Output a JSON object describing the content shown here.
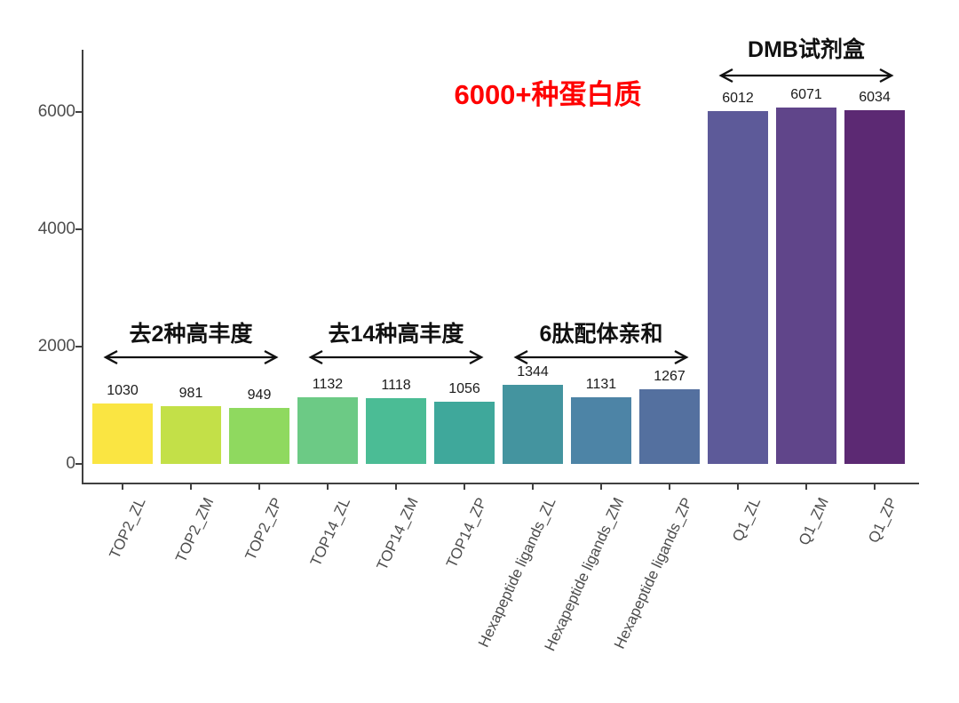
{
  "figure": {
    "background": "#ffffff",
    "highlight_note": {
      "text": "6000+种蛋白质",
      "color": "#FF0000"
    },
    "axis": {
      "line_color": "#404040",
      "tick_label_color": "#4d4d4d"
    }
  },
  "chart_data": {
    "type": "bar",
    "title": "",
    "xlabel": "",
    "ylabel": "",
    "categories": [
      "TOP2_ZL",
      "TOP2_ZM",
      "TOP2_ZP",
      "TOP14_ZL",
      "TOP14_ZM",
      "TOP14_ZP",
      "Hexapeptide ligands_ZL",
      "Hexapeptide ligands_ZM",
      "Hexapeptide ligands_ZP",
      "Q1_ZL",
      "Q1_ZM",
      "Q1_ZP"
    ],
    "values": [
      1030,
      981,
      949,
      1132,
      1118,
      1056,
      1344,
      1131,
      1267,
      6012,
      6071,
      6034
    ],
    "bar_colors": [
      "#FAE542",
      "#C3E048",
      "#8FD95F",
      "#6CCA85",
      "#4BBC95",
      "#3FA89B",
      "#44949F",
      "#4D84A6",
      "#54709F",
      "#5D5A99",
      "#60458A",
      "#5C2973"
    ],
    "value_label_color": "#1b1b1b",
    "yticks": [
      0,
      2000,
      4000,
      6000
    ],
    "ylim": [
      0,
      7000
    ],
    "grid": false,
    "legend": "none",
    "group_annotations": [
      {
        "label": "去2种高丰度",
        "start_index": 0,
        "end_index": 2
      },
      {
        "label": "去14种高丰度",
        "start_index": 3,
        "end_index": 5
      },
      {
        "label": "6肽配体亲和",
        "start_index": 6,
        "end_index": 8
      },
      {
        "label": "DMB试剂盒",
        "start_index": 9,
        "end_index": 11
      }
    ]
  }
}
